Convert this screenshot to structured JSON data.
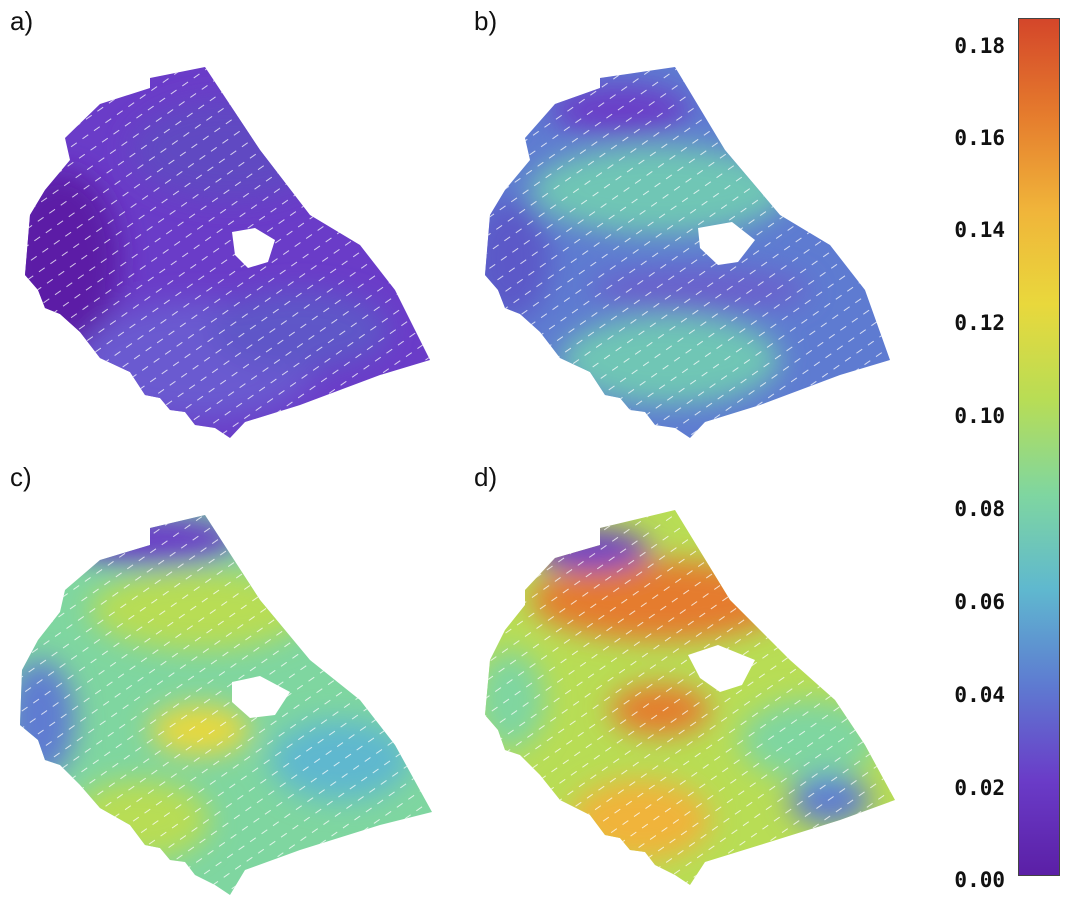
{
  "panels": [
    {
      "label": "a)"
    },
    {
      "label": "b)"
    },
    {
      "label": "c)"
    },
    {
      "label": "d)"
    }
  ],
  "colorbar": {
    "ticks": [
      "0.18",
      "0.16",
      "0.14",
      "0.12",
      "0.10",
      "0.08",
      "0.06",
      "0.04",
      "0.02",
      "0.00"
    ],
    "colors": [
      "#5b1fa6",
      "#6a3cc8",
      "#5e7bd1",
      "#5fb8cf",
      "#7fd6a0",
      "#b8dd55",
      "#e9d83c",
      "#f0b43a",
      "#e57b2d",
      "#d4462a"
    ]
  }
}
